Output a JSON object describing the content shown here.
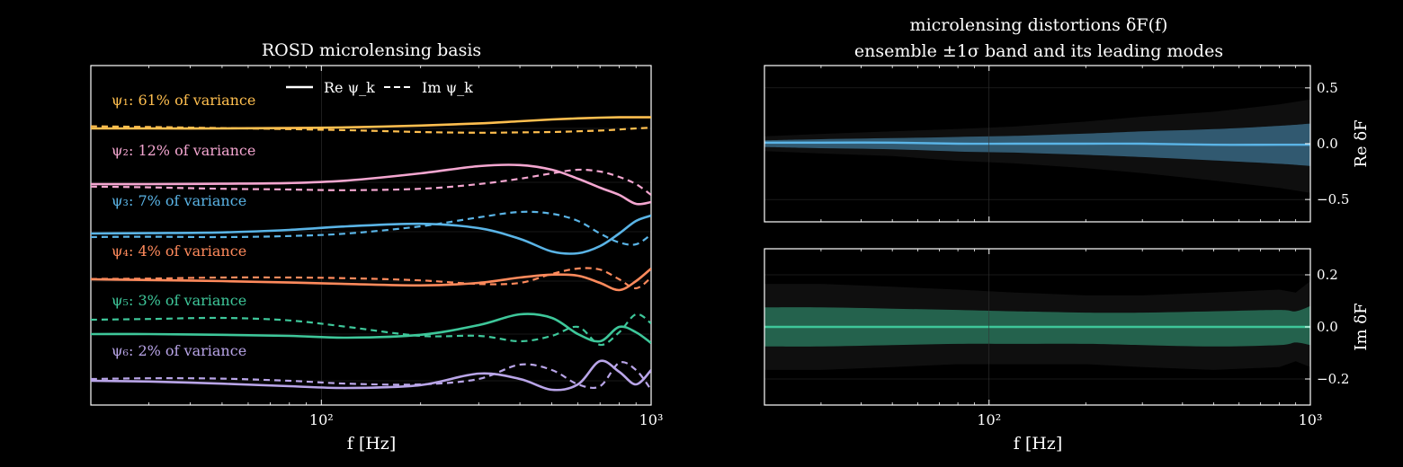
{
  "colors": {
    "background": "#000000",
    "axes": "#ffffff",
    "grid": "#333333",
    "psi": [
      "#ffbf4f",
      "#f4a6d0",
      "#5ab4e6",
      "#ff8a5c",
      "#3ec79a",
      "#b9a5e8"
    ]
  },
  "chart_data": [
    {
      "type": "line",
      "title": "ROSD microlensing basis",
      "xlabel": "f [Hz]",
      "xscale": "log",
      "xlim": [
        20,
        1000
      ],
      "xticks": [
        "10²",
        "10³"
      ],
      "ylabel": "",
      "grid": true,
      "legend": {
        "placement": "top-center",
        "entries": [
          "Re ψ_k",
          "Im ψ_k"
        ]
      },
      "series_labels": [
        "ψ₁: 61% of variance",
        "ψ₂: 12% of variance",
        "ψ₃: 7% of variance",
        "ψ₄: 4% of variance",
        "ψ₅: 3% of variance",
        "ψ₆: 2% of variance"
      ],
      "x": [
        20,
        30,
        50,
        80,
        120,
        200,
        300,
        400,
        500,
        600,
        700,
        800,
        900,
        1000
      ],
      "series": [
        {
          "name": "ψ₁",
          "re": [
            0.0,
            0.0,
            0.0,
            0.01,
            0.03,
            0.08,
            0.14,
            0.2,
            0.25,
            0.28,
            0.3,
            0.31,
            0.31,
            0.31
          ],
          "im": [
            0.06,
            0.04,
            0.01,
            -0.02,
            -0.05,
            -0.1,
            -0.12,
            -0.11,
            -0.1,
            -0.08,
            -0.06,
            -0.03,
            0.0,
            0.02
          ]
        },
        {
          "name": "ψ₂",
          "re": [
            -0.05,
            -0.05,
            -0.04,
            -0.02,
            0.05,
            0.25,
            0.45,
            0.48,
            0.35,
            0.1,
            -0.15,
            -0.35,
            -0.6,
            -0.55
          ],
          "im": [
            -0.12,
            -0.14,
            -0.18,
            -0.2,
            -0.22,
            -0.18,
            -0.05,
            0.1,
            0.25,
            0.35,
            0.3,
            0.15,
            -0.05,
            -0.35
          ]
        },
        {
          "name": "ψ₃",
          "re": [
            -0.05,
            -0.04,
            -0.02,
            0.05,
            0.15,
            0.22,
            0.1,
            -0.2,
            -0.55,
            -0.6,
            -0.4,
            -0.05,
            0.3,
            0.45
          ],
          "im": [
            -0.15,
            -0.14,
            -0.15,
            -0.12,
            -0.05,
            0.15,
            0.4,
            0.55,
            0.5,
            0.3,
            -0.05,
            -0.3,
            -0.35,
            -0.08
          ]
        },
        {
          "name": "ψ₄",
          "re": [
            0.05,
            0.03,
            0.0,
            -0.04,
            -0.08,
            -0.12,
            -0.05,
            0.1,
            0.18,
            0.15,
            -0.05,
            -0.25,
            0.0,
            0.35
          ],
          "im": [
            0.06,
            0.07,
            0.1,
            0.1,
            0.08,
            0.02,
            -0.08,
            -0.05,
            0.2,
            0.35,
            0.32,
            0.05,
            -0.2,
            0.1
          ]
        },
        {
          "name": "ψ₅",
          "re": [
            0.0,
            0.0,
            -0.02,
            -0.05,
            -0.1,
            -0.02,
            0.25,
            0.55,
            0.45,
            0.0,
            -0.2,
            0.2,
            0.05,
            -0.25
          ],
          "im": [
            0.4,
            0.42,
            0.45,
            0.38,
            0.2,
            -0.05,
            -0.05,
            -0.2,
            -0.05,
            0.2,
            -0.3,
            0.05,
            0.55,
            0.3
          ]
        },
        {
          "name": "ψ₆",
          "re": [
            0.0,
            -0.02,
            -0.08,
            -0.15,
            -0.2,
            -0.12,
            0.2,
            0.05,
            -0.25,
            -0.1,
            0.55,
            0.25,
            -0.1,
            0.3
          ],
          "im": [
            0.05,
            0.07,
            0.06,
            0.0,
            -0.08,
            -0.1,
            0.05,
            0.45,
            0.3,
            -0.1,
            -0.15,
            0.5,
            0.3,
            -0.25
          ]
        }
      ]
    },
    {
      "type": "area",
      "title": "microlensing distortions δF(f)\nensemble ±1σ band and its leading modes",
      "title_lines": [
        "microlensing distortions δF(f)",
        "ensemble ±1σ band and its leading modes"
      ],
      "xlabel": "f [Hz]",
      "xscale": "log",
      "xlim": [
        20,
        1000
      ],
      "xticks": [
        "10²",
        "10³"
      ],
      "panels": [
        {
          "ylabel": "Re δF",
          "ylim": [
            -0.7,
            0.7
          ],
          "yticks": [
            "0.5",
            "0.0",
            "−0.5"
          ],
          "ytick_values": [
            0.5,
            0.0,
            -0.5
          ],
          "color": "#5ab4e6",
          "x": [
            20,
            30,
            50,
            80,
            120,
            200,
            300,
            500,
            800,
            1000
          ],
          "mean": [
            0.01,
            0.01,
            0.01,
            0.0,
            0.0,
            0.0,
            0.0,
            -0.01,
            -0.01,
            -0.01
          ],
          "upper": [
            0.03,
            0.04,
            0.05,
            0.06,
            0.07,
            0.09,
            0.11,
            0.13,
            0.16,
            0.18
          ],
          "lower": [
            -0.03,
            -0.04,
            -0.05,
            -0.07,
            -0.08,
            -0.1,
            -0.12,
            -0.15,
            -0.18,
            -0.2
          ]
        },
        {
          "ylabel": "Im δF",
          "ylim": [
            -0.3,
            0.3
          ],
          "yticks": [
            "0.2",
            "0.0",
            "−0.2"
          ],
          "ytick_values": [
            0.2,
            0.0,
            -0.2
          ],
          "color": "#3ec79a",
          "x": [
            20,
            30,
            50,
            80,
            120,
            200,
            300,
            500,
            800,
            900,
            1000
          ],
          "mean": [
            0.0,
            0.0,
            0.0,
            0.0,
            0.0,
            0.0,
            0.0,
            0.0,
            0.0,
            0.0,
            0.0
          ],
          "upper": [
            0.075,
            0.075,
            0.07,
            0.065,
            0.06,
            0.055,
            0.055,
            0.06,
            0.065,
            0.06,
            0.08
          ],
          "lower": [
            -0.075,
            -0.075,
            -0.07,
            -0.065,
            -0.065,
            -0.065,
            -0.07,
            -0.075,
            -0.07,
            -0.06,
            -0.07
          ]
        }
      ]
    }
  ]
}
